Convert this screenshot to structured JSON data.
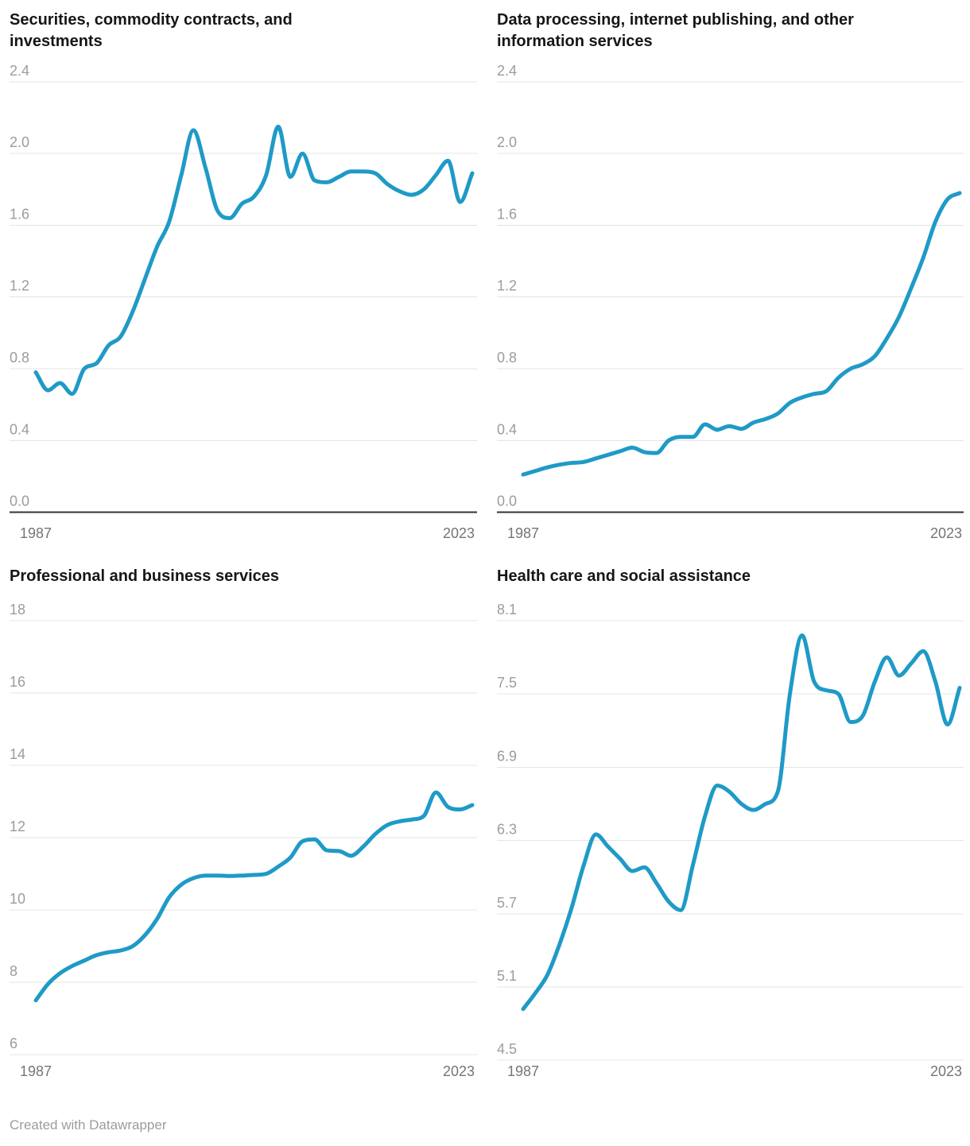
{
  "page": {
    "background": "#ffffff"
  },
  "style": {
    "line_color": "#1f9ac7",
    "grid_color": "#e4e4e4",
    "zero_axis_color": "#333333",
    "title_color": "#161616",
    "ytick_color": "#9c9c9c",
    "xtick_color": "#757575",
    "footer_color": "#9c9c9c"
  },
  "footer": {
    "credit": "Created with Datawrapper"
  },
  "chart_data": [
    {
      "type": "line",
      "title": "Securities, commodity contracts, and investments",
      "title_lines": [
        "Securities, commodity contracts, and",
        "investments"
      ],
      "x_start": 1987,
      "x_end": 2023,
      "x_step": 1,
      "xtick_labels": [
        "1987",
        "2023"
      ],
      "ylim": [
        0,
        2.4
      ],
      "yticks": [
        0,
        0.4,
        0.8,
        1.2,
        1.6,
        2.0,
        2.4
      ],
      "ytick_labels": [
        "0.0",
        "0.4",
        "0.8",
        "1.2",
        "1.6",
        "2.0",
        "2.4"
      ],
      "grid": "horizontal",
      "legend": "none",
      "baseline_dark": true,
      "values": [
        0.78,
        0.68,
        0.72,
        0.66,
        0.8,
        0.83,
        0.93,
        0.98,
        1.12,
        1.3,
        1.48,
        1.62,
        1.88,
        2.13,
        1.92,
        1.68,
        1.64,
        1.72,
        1.76,
        1.88,
        2.15,
        1.87,
        2.0,
        1.85,
        1.84,
        1.87,
        1.9,
        1.9,
        1.89,
        1.83,
        1.79,
        1.77,
        1.8,
        1.88,
        1.96,
        1.73,
        1.89
      ]
    },
    {
      "type": "line",
      "title": "Data processing, internet publishing, and other information services",
      "title_lines": [
        "Data processing, internet publishing, and other",
        "information services"
      ],
      "x_start": 1987,
      "x_end": 2023,
      "x_step": 1,
      "xtick_labels": [
        "1987",
        "2023"
      ],
      "ylim": [
        0,
        2.4
      ],
      "yticks": [
        0,
        0.4,
        0.8,
        1.2,
        1.6,
        2.0,
        2.4
      ],
      "ytick_labels": [
        "0.0",
        "0.4",
        "0.8",
        "1.2",
        "1.6",
        "2.0",
        "2.4"
      ],
      "grid": "horizontal",
      "legend": "none",
      "baseline_dark": true,
      "values": [
        0.21,
        0.23,
        0.25,
        0.265,
        0.275,
        0.28,
        0.3,
        0.32,
        0.34,
        0.36,
        0.335,
        0.33,
        0.4,
        0.42,
        0.42,
        0.49,
        0.46,
        0.48,
        0.465,
        0.5,
        0.52,
        0.55,
        0.61,
        0.64,
        0.66,
        0.675,
        0.75,
        0.8,
        0.825,
        0.87,
        0.97,
        1.09,
        1.25,
        1.42,
        1.62,
        1.745,
        1.78
      ]
    },
    {
      "type": "line",
      "title": "Professional and business services",
      "title_lines": [
        "Professional and business services"
      ],
      "x_start": 1987,
      "x_end": 2023,
      "x_step": 1,
      "xtick_labels": [
        "1987",
        "2023"
      ],
      "ylim": [
        6,
        18
      ],
      "yticks": [
        6,
        8,
        10,
        12,
        14,
        16,
        18
      ],
      "ytick_labels": [
        "6",
        "8",
        "10",
        "12",
        "14",
        "16",
        "18"
      ],
      "grid": "horizontal",
      "legend": "none",
      "baseline_dark": false,
      "values": [
        7.5,
        7.95,
        8.25,
        8.45,
        8.6,
        8.75,
        8.83,
        8.88,
        9.0,
        9.3,
        9.75,
        10.35,
        10.7,
        10.88,
        10.95,
        10.95,
        10.94,
        10.95,
        10.97,
        11.0,
        11.2,
        11.45,
        11.9,
        11.95,
        11.65,
        11.63,
        11.5,
        11.75,
        12.1,
        12.35,
        12.45,
        12.5,
        12.6,
        13.25,
        12.85,
        12.78,
        12.9
      ]
    },
    {
      "type": "line",
      "title": "Health care and social assistance",
      "title_lines": [
        "Health care and social assistance"
      ],
      "x_start": 1987,
      "x_end": 2023,
      "x_step": 1,
      "xtick_labels": [
        "1987",
        "2023"
      ],
      "ylim": [
        4.5,
        8.1
      ],
      "yticks": [
        4.5,
        5.1,
        5.7,
        6.3,
        6.9,
        7.5,
        8.1
      ],
      "ytick_labels": [
        "4.5",
        "5.1",
        "5.7",
        "6.3",
        "6.9",
        "7.5",
        "8.1"
      ],
      "grid": "horizontal",
      "legend": "none",
      "baseline_dark": false,
      "values": [
        4.92,
        5.05,
        5.2,
        5.45,
        5.75,
        6.1,
        6.35,
        6.25,
        6.15,
        6.05,
        6.08,
        5.95,
        5.8,
        5.73,
        6.1,
        6.5,
        6.75,
        6.7,
        6.6,
        6.55,
        6.6,
        6.7,
        7.5,
        7.98,
        7.6,
        7.53,
        7.5,
        7.27,
        7.32,
        7.6,
        7.8,
        7.65,
        7.75,
        7.85,
        7.6,
        7.25,
        7.55
      ]
    }
  ]
}
